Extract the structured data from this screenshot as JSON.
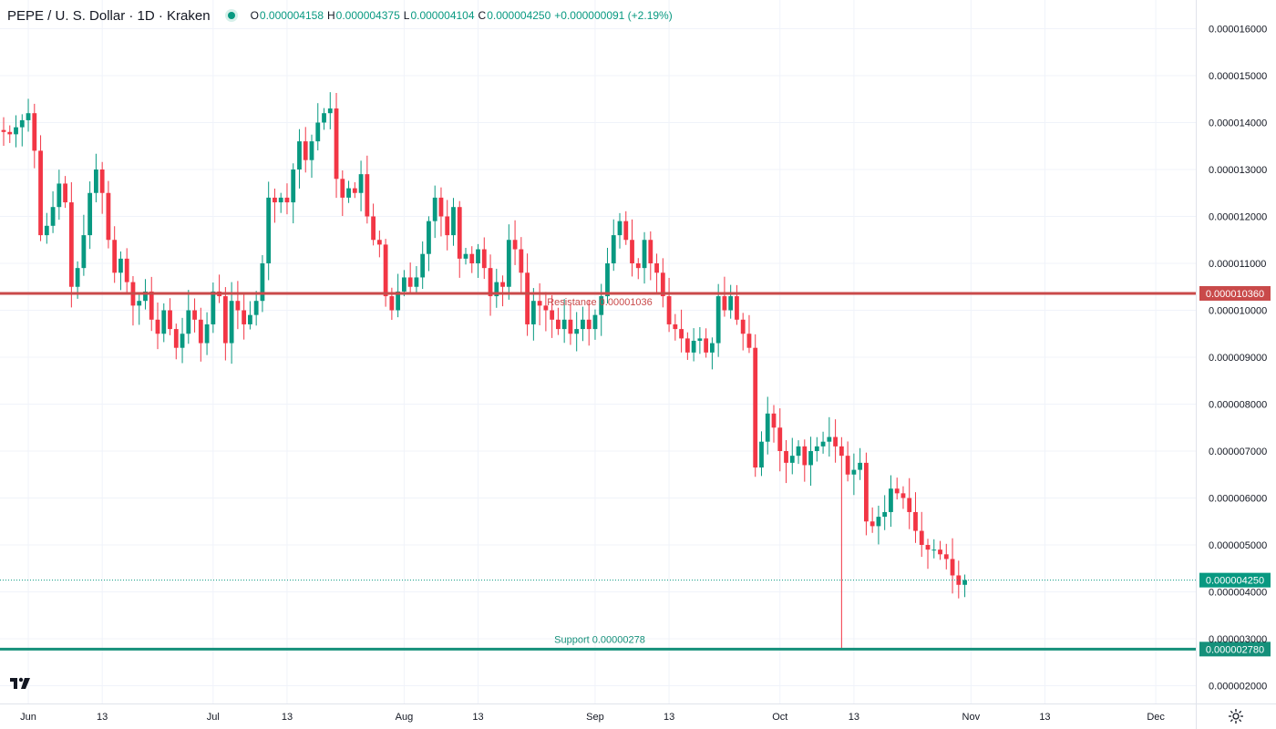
{
  "header": {
    "symbol": "PEPE / U. S. Dollar · 1D · Kraken",
    "open_label": "O",
    "open": "0.000004158",
    "high_label": "H",
    "high": "0.000004375",
    "low_label": "L",
    "low": "0.000004104",
    "close_label": "C",
    "close": "0.000004250",
    "change": "+0.000000091 (+2.19%)"
  },
  "colors": {
    "up": "#089981",
    "down": "#F23645",
    "resistance": "#c94a4a",
    "support": "#15907a"
  },
  "chart_data": {
    "type": "candlestick",
    "title": "PEPE / U. S. Dollar · 1D · Kraken",
    "y_axis_ticks": [
      "0.000016000",
      "0.000015000",
      "0.000014000",
      "0.000013000",
      "0.000012000",
      "0.000011000",
      "0.000010000",
      "0.000009000",
      "0.000008000",
      "0.000007000",
      "0.000006000",
      "0.000005000",
      "0.000004000",
      "0.000003000",
      "0.000002000"
    ],
    "y_tick_values": [
      1.6e-05,
      1.5e-05,
      1.4e-05,
      1.3e-05,
      1.2e-05,
      1.1e-05,
      1e-05,
      9e-06,
      8e-06,
      7e-06,
      6e-06,
      5e-06,
      4e-06,
      3e-06,
      2e-06
    ],
    "x_axis_ticks": [
      {
        "label": "Jun",
        "date": "2024-06-01"
      },
      {
        "label": "13",
        "date": "2024-06-13"
      },
      {
        "label": "Jul",
        "date": "2024-07-01"
      },
      {
        "label": "13",
        "date": "2024-07-13"
      },
      {
        "label": "Aug",
        "date": "2024-08-01"
      },
      {
        "label": "13",
        "date": "2024-08-13"
      },
      {
        "label": "Sep",
        "date": "2024-09-01"
      },
      {
        "label": "13",
        "date": "2024-09-13"
      },
      {
        "label": "Oct",
        "date": "2024-10-01"
      },
      {
        "label": "13",
        "date": "2024-10-13"
      },
      {
        "label": "Nov",
        "date": "2024-11-01"
      },
      {
        "label": "13",
        "date": "2024-11-13"
      },
      {
        "label": "Dec",
        "date": "2024-12-01"
      }
    ],
    "ylim": [
      1.6e-06,
      1.64e-05
    ],
    "grid": true,
    "resistance": {
      "label": "Resistance 0.00001036",
      "value": 1.036e-05,
      "axis_label": "0.000010360"
    },
    "support": {
      "label": "Support 0.00000278",
      "value": 2.78e-06,
      "axis_label": "0.000002780"
    },
    "last_price": {
      "value": 4.25e-06,
      "axis_label": "0.000004250"
    },
    "closes": [
      13.8,
      13.75,
      13.9,
      14.05,
      14.2,
      13.4,
      11.6,
      11.8,
      12.2,
      12.7,
      12.3,
      10.5,
      10.9,
      11.6,
      12.5,
      13.0,
      12.5,
      11.5,
      10.8,
      11.1,
      10.6,
      10.1,
      10.2,
      10.4,
      9.8,
      9.5,
      10.0,
      9.6,
      9.2,
      9.5,
      10.0,
      9.8,
      9.3,
      9.7,
      10.4,
      10.3,
      9.3,
      10.2,
      10.0,
      9.7,
      9.9,
      10.2,
      11.0,
      12.4,
      12.3,
      12.4,
      12.3,
      13.0,
      13.6,
      13.2,
      13.6,
      14.0,
      14.2,
      14.3,
      12.8,
      12.4,
      12.6,
      12.5,
      12.9,
      12.0,
      11.5,
      11.4,
      10.3,
      10.0,
      10.4,
      10.7,
      10.5,
      10.7,
      11.2,
      11.9,
      12.4,
      12.0,
      11.6,
      12.2,
      11.1,
      11.2,
      11.0,
      11.3,
      10.9,
      10.3,
      10.6,
      10.5,
      11.5,
      11.3,
      10.8,
      9.7,
      10.2,
      10.1,
      10.0,
      9.8,
      9.6,
      9.8,
      9.5,
      9.6,
      9.8,
      9.6,
      9.9,
      10.3,
      11.0,
      11.6,
      11.9,
      11.5,
      11.0,
      10.9,
      11.5,
      11.0,
      10.8,
      10.3,
      9.7,
      9.6,
      9.4,
      9.1,
      9.35,
      9.4,
      9.1,
      9.3,
      10.3,
      10.0,
      10.3,
      9.8,
      9.5,
      9.2,
      6.65,
      7.2,
      7.8,
      7.5,
      7.0,
      6.75,
      6.9,
      7.1,
      6.7,
      7.0,
      7.1,
      7.2,
      7.3,
      7.1,
      6.9,
      6.5,
      6.6,
      6.75,
      5.5,
      5.4,
      5.6,
      5.7,
      6.2,
      6.1,
      6.0,
      5.7,
      5.3,
      5.0,
      4.9,
      4.9,
      4.8,
      4.7,
      4.35,
      4.15,
      4.25
    ]
  }
}
